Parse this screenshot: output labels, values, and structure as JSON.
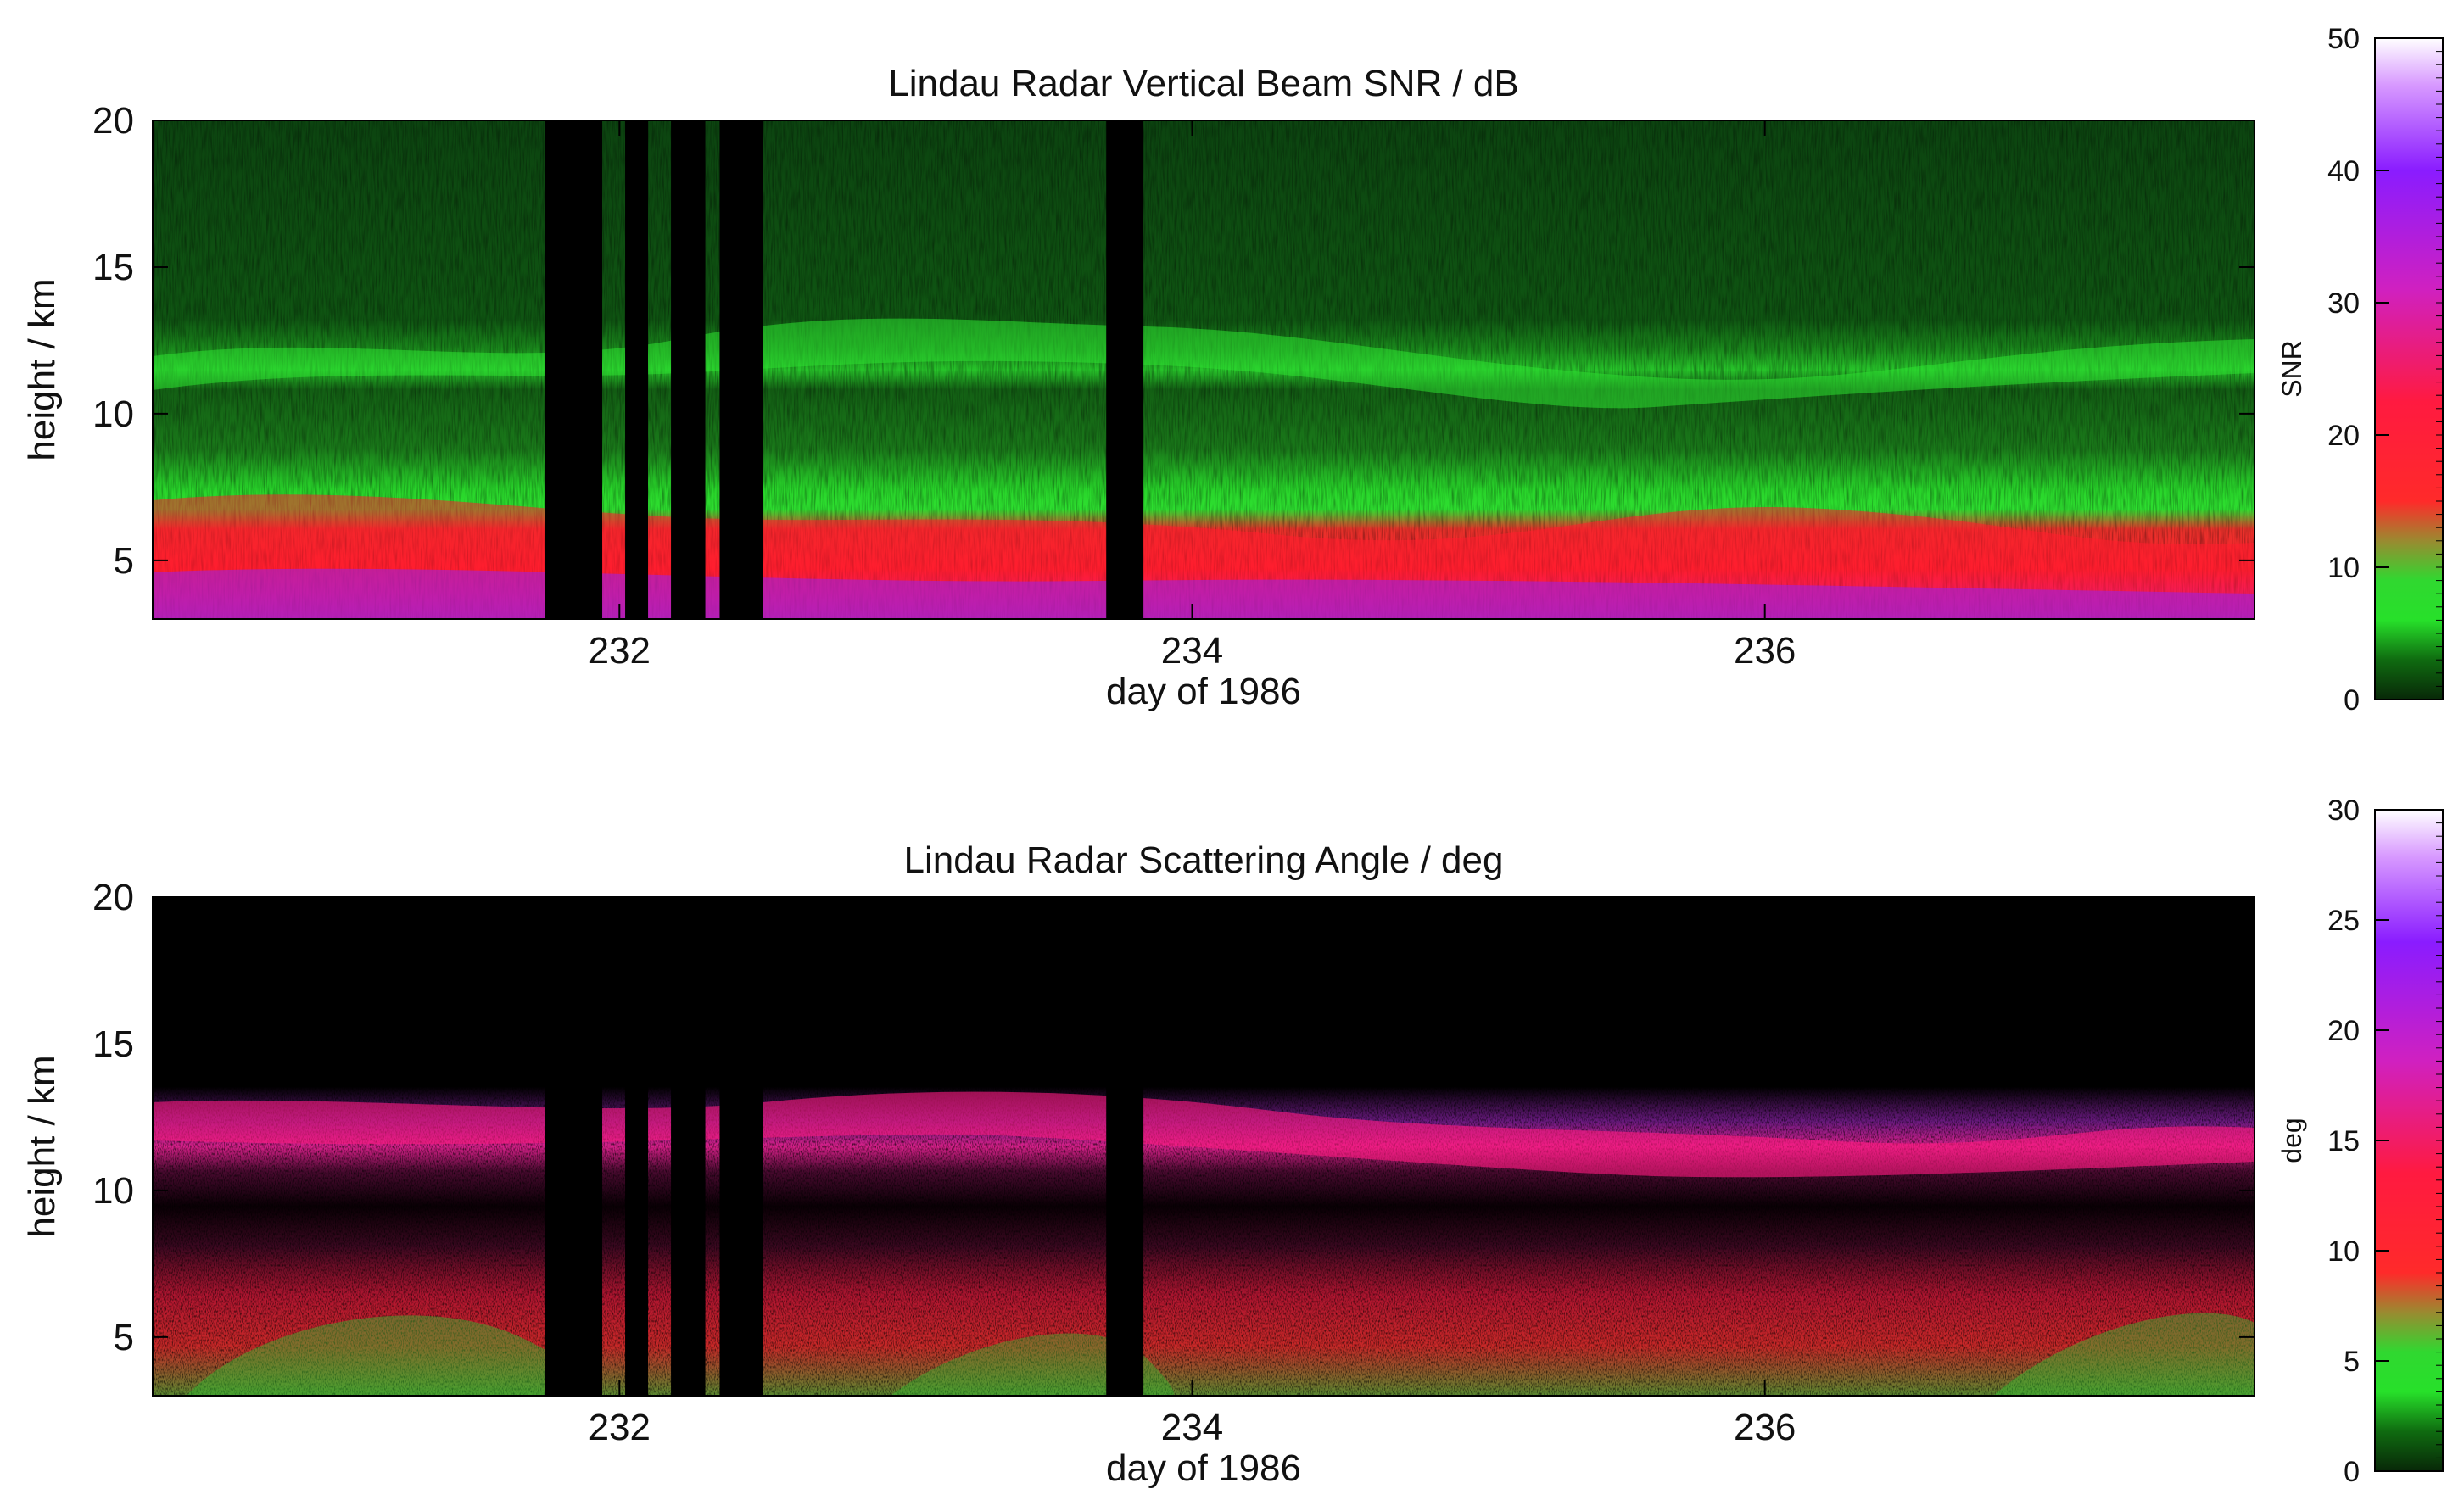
{
  "chart_data": [
    {
      "type": "heatmap",
      "title": "Lindau Radar Vertical Beam SNR / dB",
      "xlabel": "day of 1986",
      "ylabel": "height / km",
      "xlim": [
        230.37,
        237.71
      ],
      "ylim": [
        3,
        20
      ],
      "x_ticks": [
        232,
        234,
        236
      ],
      "y_ticks": [
        5,
        10,
        15,
        20
      ],
      "data_gaps_days": [
        [
          231.74,
          231.94
        ],
        [
          232.02,
          232.1
        ],
        [
          232.18,
          232.3
        ],
        [
          232.35,
          232.5
        ],
        [
          233.7,
          233.83
        ]
      ],
      "colorbar": {
        "label": "SNR",
        "range": [
          0,
          50
        ],
        "ticks": [
          0,
          10,
          20,
          30,
          40,
          50
        ]
      },
      "regions": [
        {
          "height_km": [
            3,
            6
          ],
          "snr_db": "15-40",
          "color": "red to purple"
        },
        {
          "height_km": [
            6,
            9
          ],
          "snr_db": "5-12",
          "color": "bright green"
        },
        {
          "height_km": [
            9,
            12.5
          ],
          "snr_db": "3-8",
          "color": "green, bright tropopause band near 11-12 km"
        },
        {
          "height_km": [
            12.5,
            20
          ],
          "snr_db": "0-3",
          "color": "dark green"
        }
      ]
    },
    {
      "type": "heatmap",
      "title": "Lindau Radar Scattering Angle / deg",
      "xlabel": "day of 1986",
      "ylabel": "height / km",
      "xlim": [
        230.37,
        237.71
      ],
      "ylim": [
        3,
        20
      ],
      "x_ticks": [
        232,
        234,
        236
      ],
      "y_ticks": [
        5,
        10,
        15,
        20
      ],
      "data_gaps_days": [
        [
          231.74,
          231.94
        ],
        [
          232.02,
          232.1
        ],
        [
          232.18,
          232.3
        ],
        [
          232.35,
          232.5
        ],
        [
          233.7,
          233.83
        ]
      ],
      "colorbar": {
        "label": "deg",
        "range": [
          0,
          30
        ],
        "ticks": [
          0,
          5,
          10,
          15,
          20,
          25,
          30
        ]
      },
      "regions": [
        {
          "height_km": [
            3,
            7
          ],
          "angle_deg": "3-12",
          "color": "green and red"
        },
        {
          "height_km": [
            10,
            13
          ],
          "angle_deg": "12-25",
          "color": "magenta and purple band"
        },
        {
          "height_km": [
            13,
            17
          ],
          "angle_deg": "20-30",
          "color": "sparse white and purple points"
        },
        {
          "height_km": [
            17,
            20
          ],
          "angle_deg": "none",
          "color": "black"
        }
      ]
    }
  ],
  "colors": {
    "background": "#ffffff",
    "gap": "#000000",
    "snr_colormap": [
      "#0a2a0a",
      "#0f6b10",
      "#27e02a",
      "#8cb038",
      "#ff2a2a",
      "#ff1060",
      "#d020d0",
      "#8a1cff",
      "#d888ff",
      "#ffffff"
    ],
    "angle_colormap": [
      "#0a2a0a",
      "#0f6b10",
      "#27e02a",
      "#8cb038",
      "#ff2a2a",
      "#ff1060",
      "#d020d0",
      "#8a1cff",
      "#d888ff",
      "#ffffff"
    ]
  }
}
